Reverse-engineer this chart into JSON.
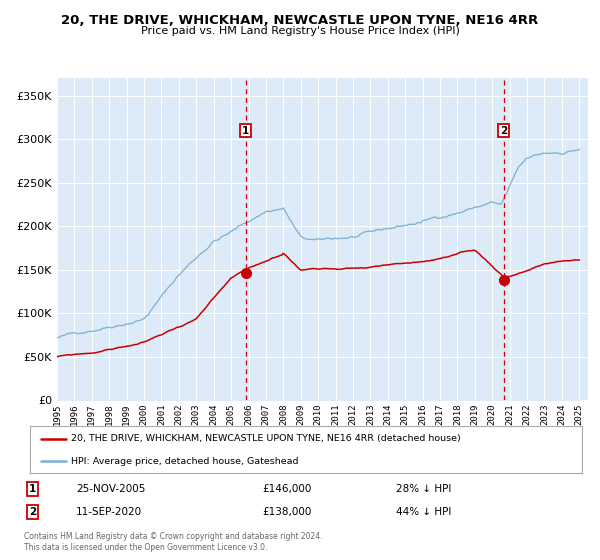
{
  "title1": "20, THE DRIVE, WHICKHAM, NEWCASTLE UPON TYNE, NE16 4RR",
  "title2": "Price paid vs. HM Land Registry's House Price Index (HPI)",
  "red_line_color": "#cc0000",
  "blue_line_color": "#7ab0d4",
  "blue_fill_color": "#ddeaf7",
  "grid_color": "#cccccc",
  "marker1_value": 146000,
  "marker2_value": 138000,
  "annotation1_date": "25-NOV-2005",
  "annotation1_price": "£146,000",
  "annotation1_hpi": "28% ↓ HPI",
  "annotation2_date": "11-SEP-2020",
  "annotation2_price": "£138,000",
  "annotation2_hpi": "44% ↓ HPI",
  "legend1": "20, THE DRIVE, WHICKHAM, NEWCASTLE UPON TYNE, NE16 4RR (detached house)",
  "legend2": "HPI: Average price, detached house, Gateshead",
  "footer": "Contains HM Land Registry data © Crown copyright and database right 2024.\nThis data is licensed under the Open Government Licence v3.0.",
  "ylim": [
    0,
    370000
  ],
  "yticks": [
    0,
    50000,
    100000,
    150000,
    200000,
    250000,
    300000,
    350000
  ]
}
